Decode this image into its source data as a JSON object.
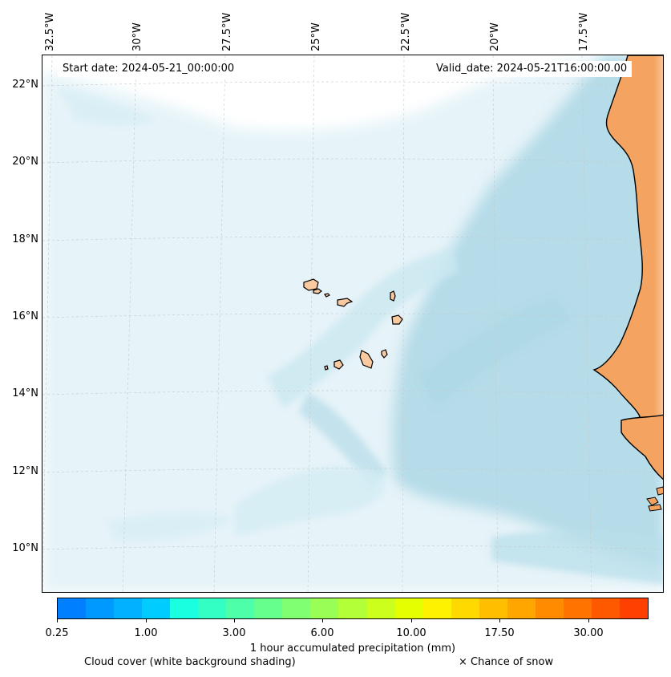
{
  "header": {
    "start_date": "Start date: 2024-05-21_00:00:00",
    "valid_date": "Valid_date: 2024-05-21T16:00:00.00"
  },
  "axes": {
    "longitude_labels": [
      "32.5°W",
      "30°W",
      "27.5°W",
      "25°W",
      "22.5°W",
      "20°W",
      "17.5°W"
    ],
    "latitude_labels": [
      "22°N",
      "20°N",
      "18°N",
      "16°N",
      "14°N",
      "12°N",
      "10°N"
    ]
  },
  "colorbar": {
    "ticks": [
      "0.25",
      "1.00",
      "3.00",
      "6.00",
      "10.00",
      "17.50",
      "30.00"
    ],
    "colors": [
      "#0080ff",
      "#0099ff",
      "#00b2ff",
      "#00ccff",
      "#19ffe0",
      "#33ffc4",
      "#4cffa8",
      "#66ff8c",
      "#80ff70",
      "#99ff54",
      "#b3ff38",
      "#ccff1c",
      "#e6ff00",
      "#fff200",
      "#ffd900",
      "#ffbf00",
      "#ffa600",
      "#ff8c00",
      "#ff7300",
      "#ff5900",
      "#ff4000"
    ],
    "label": "1 hour accumulated precipitation (mm)"
  },
  "legend": {
    "cloud_cover": "Cloud cover (white background shading)",
    "snow": "× Chance of snow"
  },
  "colors": {
    "land": "#f4a460",
    "land_light": "#f9c9a0",
    "cloud": "#add8e6",
    "cloud_light": "#e0f1f7",
    "grid": "#c8c8c8"
  }
}
